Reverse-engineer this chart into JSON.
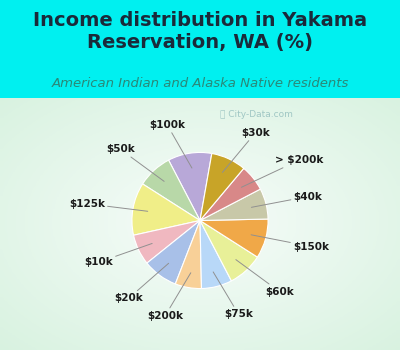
{
  "title": "Income distribution in Yakama\nReservation, WA (%)",
  "subtitle": "American Indian and Alaska Native residents",
  "watermark": "ⓘ City-Data.com",
  "labels": [
    "$100k",
    "$50k",
    "$125k",
    "$10k",
    "$20k",
    "$200k",
    "$75k",
    "$60k",
    "$150k",
    "$40k",
    "> $200k",
    "$30k"
  ],
  "values": [
    10,
    8,
    12,
    7,
    8,
    6,
    7,
    8,
    9,
    7,
    6,
    8
  ],
  "colors": [
    "#b8a8d8",
    "#b8d8a8",
    "#f0ee88",
    "#f0b8c0",
    "#a8c0e8",
    "#f8d098",
    "#b8d8f8",
    "#e8f098",
    "#f0a848",
    "#c8c8a8",
    "#d88888",
    "#c8a428"
  ],
  "background_top": "#00f0f0",
  "background_chart_colors": [
    "#d0eee0",
    "#e8f8f0"
  ],
  "title_color": "#1a2a3a",
  "subtitle_color": "#2a8878",
  "label_color": "#1a1a1a",
  "startangle": 80,
  "title_fontsize": 14,
  "subtitle_fontsize": 9.5
}
